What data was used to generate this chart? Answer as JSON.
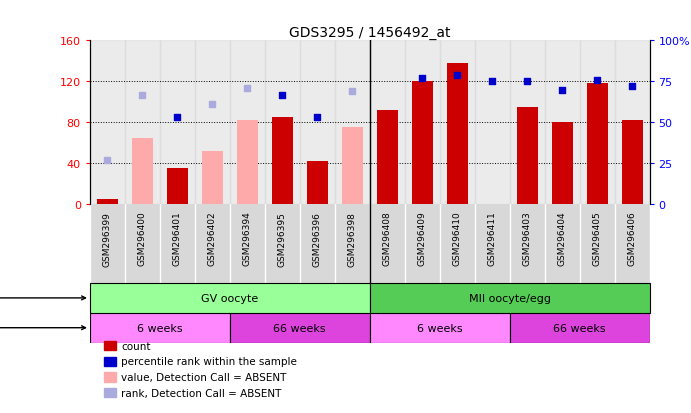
{
  "title": "GDS3295 / 1456492_at",
  "samples": [
    "GSM296399",
    "GSM296400",
    "GSM296401",
    "GSM296402",
    "GSM296394",
    "GSM296395",
    "GSM296396",
    "GSM296398",
    "GSM296408",
    "GSM296409",
    "GSM296410",
    "GSM296411",
    "GSM296403",
    "GSM296404",
    "GSM296405",
    "GSM296406"
  ],
  "count_values": [
    5,
    null,
    35,
    null,
    null,
    85,
    42,
    null,
    92,
    120,
    138,
    null,
    95,
    80,
    118,
    82
  ],
  "count_absent": [
    null,
    65,
    null,
    52,
    82,
    null,
    null,
    75,
    null,
    null,
    null,
    null,
    null,
    null,
    null,
    null
  ],
  "rank_present": [
    null,
    null,
    53,
    null,
    null,
    67,
    53,
    null,
    null,
    77,
    79,
    75,
    75,
    70,
    76,
    72
  ],
  "rank_absent": [
    27,
    67,
    null,
    61,
    71,
    null,
    null,
    69,
    null,
    null,
    null,
    null,
    null,
    null,
    null,
    null
  ],
  "ylim_left": [
    0,
    160
  ],
  "ylim_right": [
    0,
    100
  ],
  "yticks_left": [
    0,
    40,
    80,
    120,
    160
  ],
  "yticks_right": [
    0,
    25,
    50,
    75,
    100
  ],
  "ytick_right_labels": [
    "0",
    "25",
    "50",
    "75",
    "100%"
  ],
  "color_count": "#cc0000",
  "color_rank_present": "#0000cc",
  "color_count_absent": "#ffaaaa",
  "color_rank_absent": "#aaaadd",
  "color_gv_oocyte_light": "#99ff99",
  "color_mii_oocyte": "#55cc55",
  "color_6weeks": "#ff88ff",
  "color_66weeks": "#dd44dd",
  "col_bg": "#d8d8d8",
  "separator_color": "#888888"
}
